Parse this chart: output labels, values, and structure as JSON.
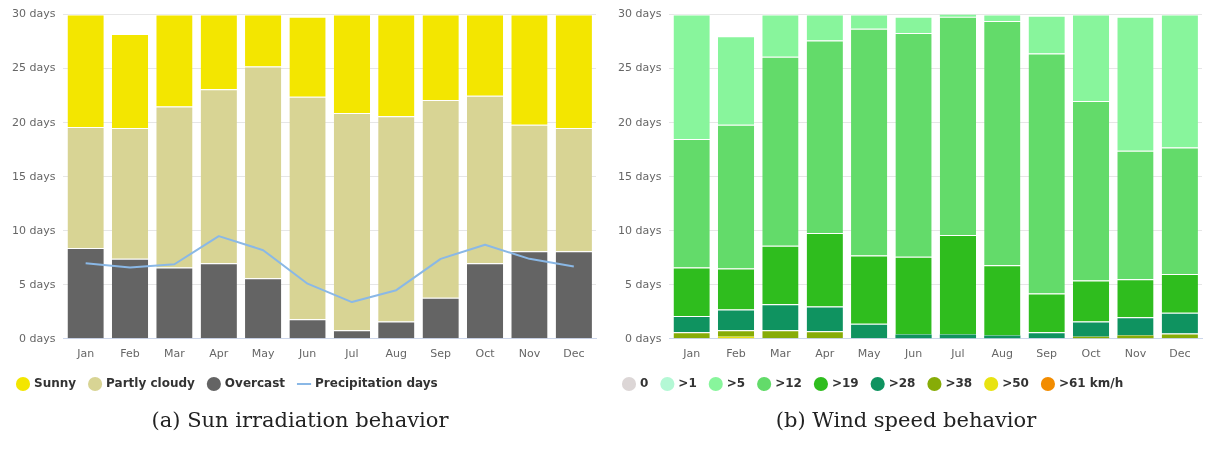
{
  "chart_data": [
    {
      "type": "bar",
      "stacked": true,
      "grid": "y",
      "legend": "bottom",
      "categories": [
        "Jan",
        "Feb",
        "Mar",
        "Apr",
        "May",
        "Jun",
        "Jul",
        "Aug",
        "Sep",
        "Oct",
        "Nov",
        "Dec"
      ],
      "ylim": [
        0,
        30
      ],
      "yticks": [
        {
          "value": 0,
          "label": "0 days"
        },
        {
          "value": 5,
          "label": "5 days"
        },
        {
          "value": 10,
          "label": "10 days"
        },
        {
          "value": 15,
          "label": "15 days"
        },
        {
          "value": 20,
          "label": "20 days"
        },
        {
          "value": 25,
          "label": "25 days"
        },
        {
          "value": 30,
          "label": "30 days"
        }
      ],
      "series": [
        {
          "name": "Overcast",
          "color": "#646464",
          "values": [
            8.4,
            7.4,
            6.6,
            7.0,
            5.6,
            1.8,
            0.8,
            1.6,
            3.8,
            7.0,
            8.1,
            8.1
          ]
        },
        {
          "name": "Partly cloudy",
          "color": "#d8d494",
          "values": [
            11.2,
            12.1,
            14.9,
            16.1,
            19.6,
            20.6,
            20.1,
            19.0,
            18.3,
            15.5,
            11.7,
            11.4
          ]
        },
        {
          "name": "Sunny",
          "color": "#f3e600",
          "values": [
            10.4,
            8.7,
            8.5,
            6.9,
            4.8,
            7.4,
            9.1,
            9.4,
            7.9,
            7.5,
            10.2,
            10.5
          ]
        },
        {
          "name": "Precipitation days",
          "type": "line",
          "color": "#8ab8e6",
          "values": [
            7.0,
            6.6,
            6.9,
            9.5,
            8.2,
            5.1,
            3.4,
            4.5,
            7.4,
            8.7,
            7.4,
            6.7
          ]
        }
      ],
      "annotations": [
        "(a) Sun irradiation behavior"
      ]
    },
    {
      "type": "bar",
      "stacked": true,
      "grid": "y",
      "legend": "bottom",
      "categories": [
        "Jan",
        "Feb",
        "Mar",
        "Apr",
        "May",
        "Jun",
        "Jul",
        "Aug",
        "Sep",
        "Oct",
        "Nov",
        "Dec"
      ],
      "ylim": [
        0,
        30
      ],
      "yticks": [
        {
          "value": 0,
          "label": "0 days"
        },
        {
          "value": 5,
          "label": "5 days"
        },
        {
          "value": 10,
          "label": "10 days"
        },
        {
          "value": 15,
          "label": "15 days"
        },
        {
          "value": 20,
          "label": "20 days"
        },
        {
          "value": 25,
          "label": "25 days"
        },
        {
          "value": 30,
          "label": "30 days"
        }
      ],
      "series": [
        {
          "name": ">61 km/h",
          "color": "#f28c00",
          "values": [
            0,
            0,
            0,
            0,
            0,
            0,
            0,
            0,
            0,
            0,
            0,
            0
          ]
        },
        {
          "name": ">50",
          "color": "#e8e311",
          "values": [
            0,
            0.2,
            0,
            0,
            0,
            0,
            0,
            0,
            0,
            0,
            0,
            0
          ]
        },
        {
          "name": ">38",
          "color": "#87ac07",
          "values": [
            0.6,
            0.6,
            0.8,
            0.7,
            0,
            0,
            0,
            0,
            0,
            0.2,
            0.3,
            0.5
          ]
        },
        {
          "name": ">28",
          "color": "#0f9360",
          "values": [
            1.5,
            1.9,
            2.4,
            2.3,
            1.4,
            0.4,
            0.4,
            0.3,
            0.6,
            1.4,
            1.7,
            1.9
          ]
        },
        {
          "name": ">19",
          "color": "#2fbd1e",
          "values": [
            4.5,
            3.8,
            5.4,
            6.8,
            6.3,
            7.2,
            9.2,
            6.5,
            3.6,
            3.8,
            3.5,
            3.6
          ]
        },
        {
          "name": ">12",
          "color": "#63db6a",
          "values": [
            11.9,
            13.3,
            17.5,
            17.8,
            21.0,
            20.7,
            20.2,
            22.6,
            22.2,
            16.6,
            11.9,
            11.7
          ]
        },
        {
          "name": ">5",
          "color": "#88f59c",
          "values": [
            11.5,
            8.2,
            3.9,
            2.4,
            1.3,
            1.5,
            0.2,
            0.6,
            3.5,
            8.0,
            12.4,
            12.3
          ]
        },
        {
          "name": ">1",
          "color": "#b4f8d5",
          "values": [
            0,
            0,
            0,
            0,
            0,
            0,
            0,
            0,
            0,
            0,
            0,
            0
          ]
        },
        {
          "name": "0",
          "color": "#dcd6d6",
          "values": [
            0,
            0,
            0,
            0,
            0,
            0,
            0,
            0,
            0,
            0,
            0,
            0
          ]
        }
      ],
      "annotations": [
        "(b) Wind speed behavior"
      ]
    }
  ]
}
